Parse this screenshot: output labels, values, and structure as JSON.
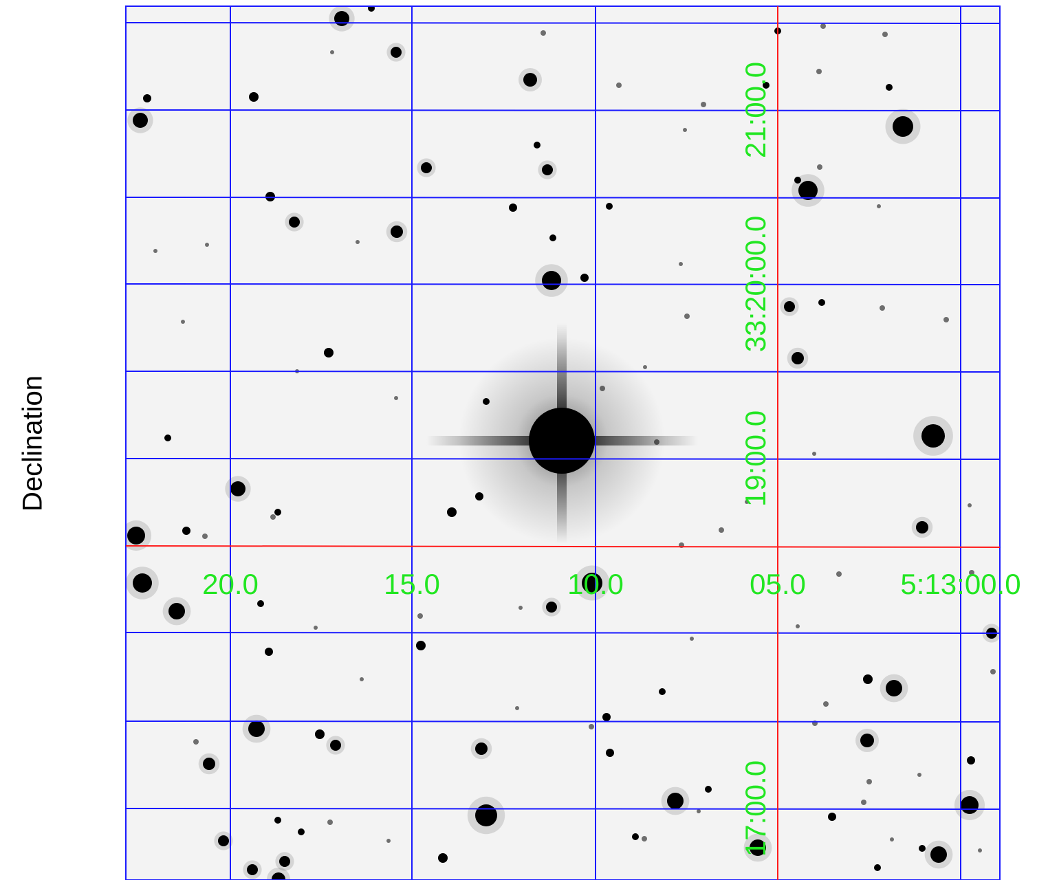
{
  "axis": {
    "ylabel": "Declination"
  },
  "coord_labels": {
    "ra": [
      "20.0",
      "15.0",
      "10.0",
      "05.0",
      "5:13:00.0"
    ],
    "dec": [
      "21:00.0",
      "33:20:00.0",
      "19:00.0",
      "17:00.0"
    ]
  },
  "colors": {
    "background": "#f3f3f3",
    "grid": "#1a1aff",
    "crosshair": "#ff1a1a",
    "labels": "#22e622",
    "stars": "#000000"
  },
  "image": {
    "content": "grayscale star field with bright diffraction-spike star near center",
    "overlay": "RA/Dec coordinate grid"
  }
}
